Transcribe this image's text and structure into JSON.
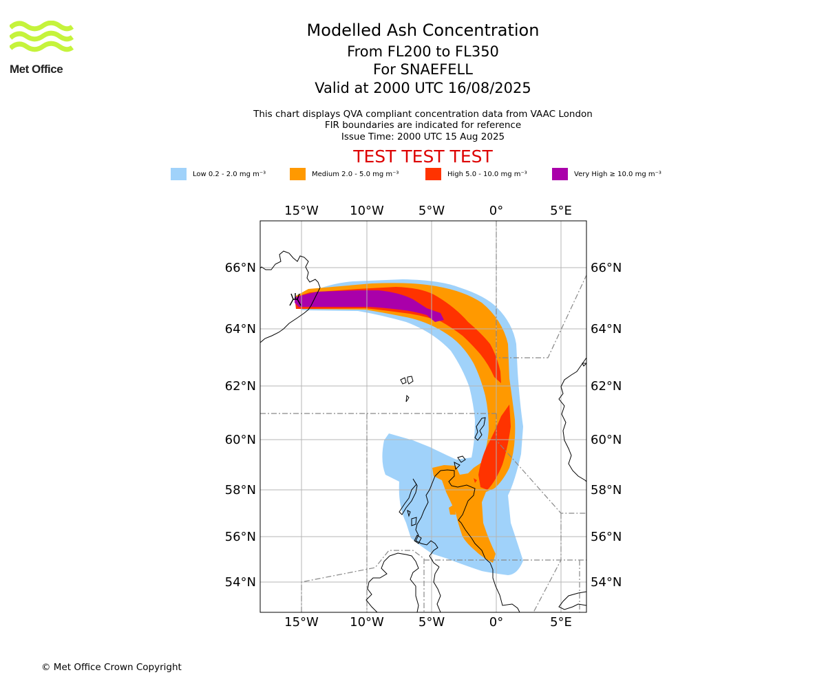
{
  "logo": {
    "text": "Met Office",
    "colors": {
      "waves": "#c5f33c",
      "text": "#222222"
    }
  },
  "header": {
    "title": "Modelled Ash Concentration",
    "levels": "From FL200 to FL350",
    "volcano": "For SNAEFELL",
    "valid": "Valid at 2000 UTC 16/08/2025"
  },
  "subtitle": {
    "line1": "This chart displays QVA compliant concentration data from VAAC London",
    "line2": "FIR boundaries are indicated for reference",
    "line3": "Issue Time: 2000 UTC 15 Aug 2025"
  },
  "test_banner": "TEST TEST TEST",
  "legend": [
    {
      "label": "Low 0.2 - 2.0 mg m⁻³",
      "color": "#a0d2fa"
    },
    {
      "label": "Medium 2.0 - 5.0 mg m⁻³",
      "color": "#ff9900"
    },
    {
      "label": "High 5.0 - 10.0 mg m⁻³",
      "color": "#ff3300"
    },
    {
      "label": "Very High ≥ 10.0 mg m⁻³",
      "color": "#aa00aa"
    }
  ],
  "map": {
    "lon_labels": [
      "15°W",
      "10°W",
      "5°W",
      "0°",
      "5°E"
    ],
    "lat_labels": [
      "66°N",
      "64°N",
      "62°N",
      "60°N",
      "58°N",
      "56°N",
      "54°N"
    ],
    "source_symbol": "volcano-icon"
  },
  "copyright": "© Met Office Crown Copyright"
}
